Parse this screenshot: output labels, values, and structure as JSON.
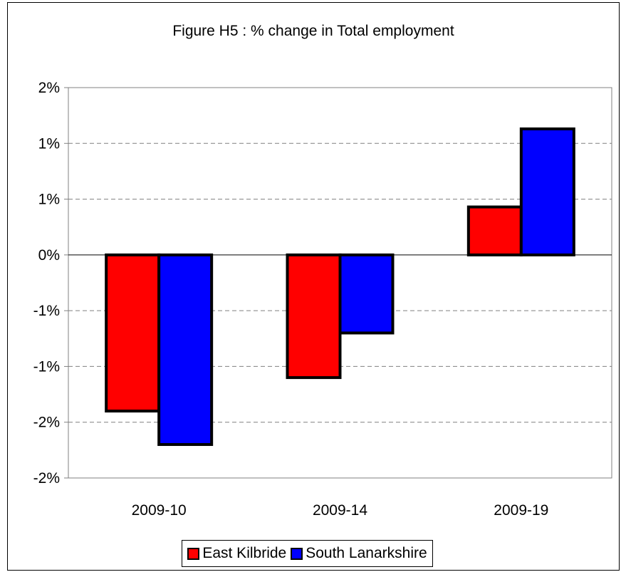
{
  "colors": {
    "east_kilbride": "#ff0000",
    "south_lanarkshire": "#0000ff",
    "gridline": "#808080",
    "axis": "#808080"
  },
  "chart_data": {
    "type": "bar",
    "title": "Figure H5 : % change in Total employment",
    "xlabel": "",
    "ylabel": "",
    "categories": [
      "2009-10",
      "2009-14",
      "2009-19"
    ],
    "series": [
      {
        "name": "East Kilbride",
        "color": "#ff0000",
        "values": [
          -1.4,
          -1.1,
          0.43
        ]
      },
      {
        "name": "South Lanarkshire",
        "color": "#0000ff",
        "values": [
          -1.7,
          -0.7,
          1.13
        ]
      }
    ],
    "ylim": [
      -2.0,
      1.5
    ],
    "y_ticks": [
      1.5,
      1.0,
      0.5,
      0.0,
      -0.5,
      -1.0,
      -1.5,
      -2.0
    ],
    "y_tick_labels": [
      "2%",
      "1%",
      "1%",
      "0%",
      "-1%",
      "-1%",
      "-2%",
      "-2%"
    ],
    "grid": true,
    "grid_style": "dashed",
    "legend_position": "bottom"
  }
}
